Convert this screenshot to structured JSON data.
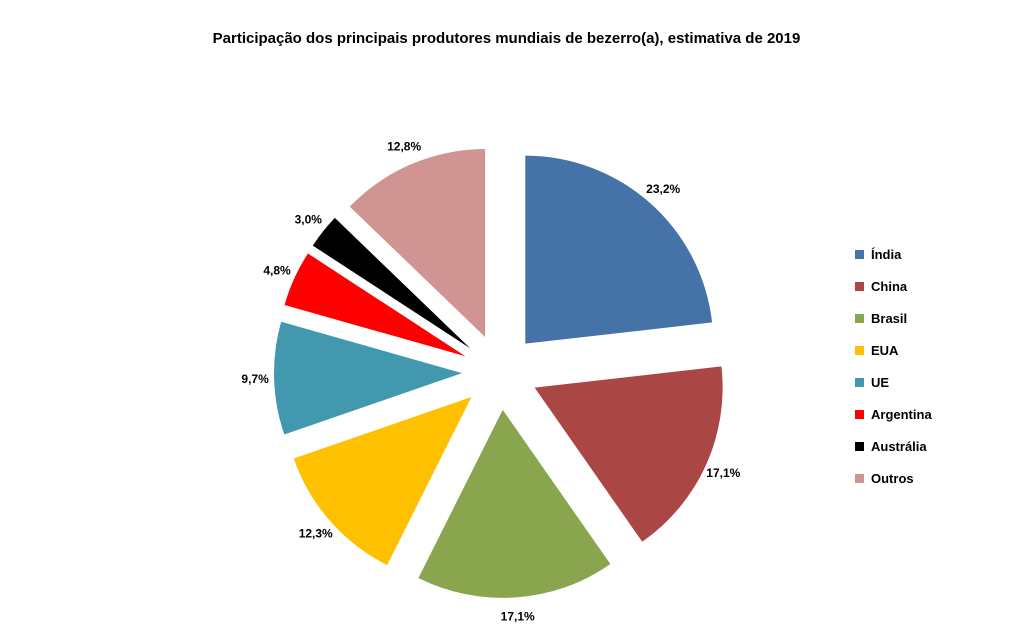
{
  "chart_data": {
    "type": "pie",
    "title": "Participação dos principais produtores mundiais de bezerro(a), estimativa de 2019",
    "categories": [
      "Índia",
      "China",
      "Brasil",
      "EUA",
      "UE",
      "Argentina",
      "Austrália",
      "Outros"
    ],
    "values": [
      23.2,
      17.1,
      17.1,
      12.3,
      9.7,
      4.8,
      3.0,
      12.8
    ],
    "value_labels": [
      "23,2%",
      "17,1%",
      "17,1%",
      "12,3%",
      "9,7%",
      "4,8%",
      "3,0%",
      "12,8%"
    ],
    "colors": [
      "#4572A7",
      "#AA4643",
      "#89A54E",
      "#FFC000",
      "#4198AF",
      "#FF0000",
      "#000000",
      "#D09493"
    ],
    "exploded": true,
    "legend_position": "right"
  }
}
